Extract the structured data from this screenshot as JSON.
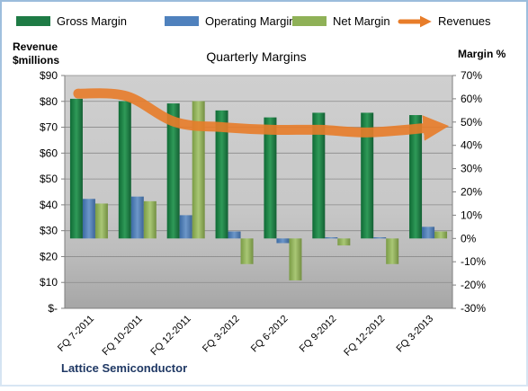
{
  "chart_data": {
    "type": "bar",
    "title": "Quarterly Margins",
    "footer": "Lattice Semiconductor",
    "left_axis": {
      "label_line1": "Revenue",
      "label_line2": "$millions",
      "min": 0,
      "max": 90,
      "step": 10,
      "ticks": [
        "$-",
        "$10",
        "$20",
        "$30",
        "$40",
        "$50",
        "$60",
        "$70",
        "$80",
        "$90"
      ]
    },
    "right_axis": {
      "label": "Margin %",
      "min": -30,
      "max": 70,
      "step": 10,
      "ticks": [
        "-30%",
        "-20%",
        "-10%",
        "0%",
        "10%",
        "20%",
        "30%",
        "40%",
        "50%",
        "60%",
        "70%"
      ]
    },
    "categories": [
      "FQ 7-2011",
      "FQ 10-2011",
      "FQ 12-2011",
      "FQ 3-2012",
      "FQ 6-2012",
      "FQ 9-2012",
      "FQ 12-2012",
      "FQ 3-2013"
    ],
    "series": [
      {
        "name": "Gross Margin",
        "axis": "right",
        "color": "#1e7b45",
        "values": [
          60,
          59,
          58,
          55,
          52,
          54,
          54,
          53
        ]
      },
      {
        "name": "Operating Margin",
        "axis": "right",
        "color": "#4f81bd",
        "values": [
          17,
          18,
          10,
          3,
          -2,
          0.5,
          0.5,
          5
        ]
      },
      {
        "name": "Net Margin",
        "axis": "right",
        "color": "#8fb157",
        "values": [
          15,
          16,
          59,
          -11,
          -18,
          -3,
          -11,
          3
        ]
      },
      {
        "name": "Revenues",
        "axis": "left",
        "type": "line",
        "color": "#e87d2a",
        "values": [
          83,
          82,
          72,
          70,
          69,
          69,
          68,
          70
        ]
      }
    ],
    "grid": true,
    "legend_position": "top"
  }
}
